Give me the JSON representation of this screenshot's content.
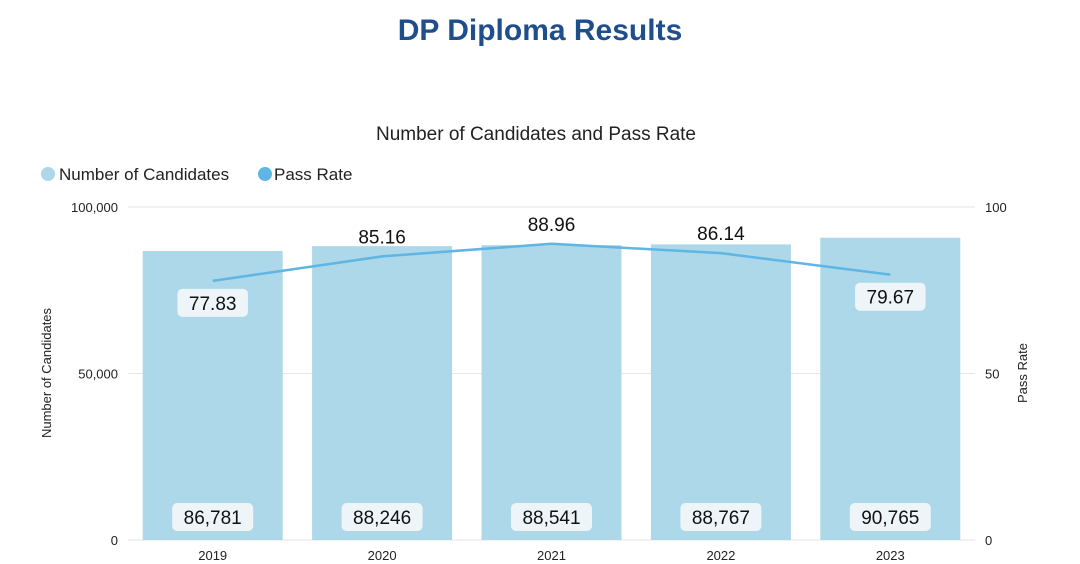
{
  "page": {
    "title": "DP Diploma Results"
  },
  "chart_data": {
    "type": "bar",
    "title": "Number of Candidates and Pass Rate",
    "categories": [
      "2019",
      "2020",
      "2021",
      "2022",
      "2023"
    ],
    "series": [
      {
        "name": "Number of Candidates",
        "type": "bar",
        "axis": "left",
        "values": [
          86781,
          88246,
          88541,
          88767,
          90765
        ],
        "labels": [
          "86,781",
          "88,246",
          "88,541",
          "88,767",
          "90,765"
        ],
        "color": "#acd8ea"
      },
      {
        "name": "Pass Rate",
        "type": "line",
        "axis": "right",
        "values": [
          77.83,
          85.16,
          88.96,
          86.14,
          79.67
        ],
        "labels": [
          "77.83",
          "85.16",
          "88.96",
          "86.14",
          "79.67"
        ],
        "color": "#5fb5e3"
      }
    ],
    "ylabel": "Number of Candidates",
    "y2label": "Pass Rate",
    "ylim": [
      0,
      100000
    ],
    "y2lim": [
      0,
      100
    ],
    "yticks": [
      "0",
      "50,000",
      "100,000"
    ],
    "y2ticks": [
      "0",
      "50",
      "100"
    ],
    "grid": true,
    "legend": "top-left"
  }
}
